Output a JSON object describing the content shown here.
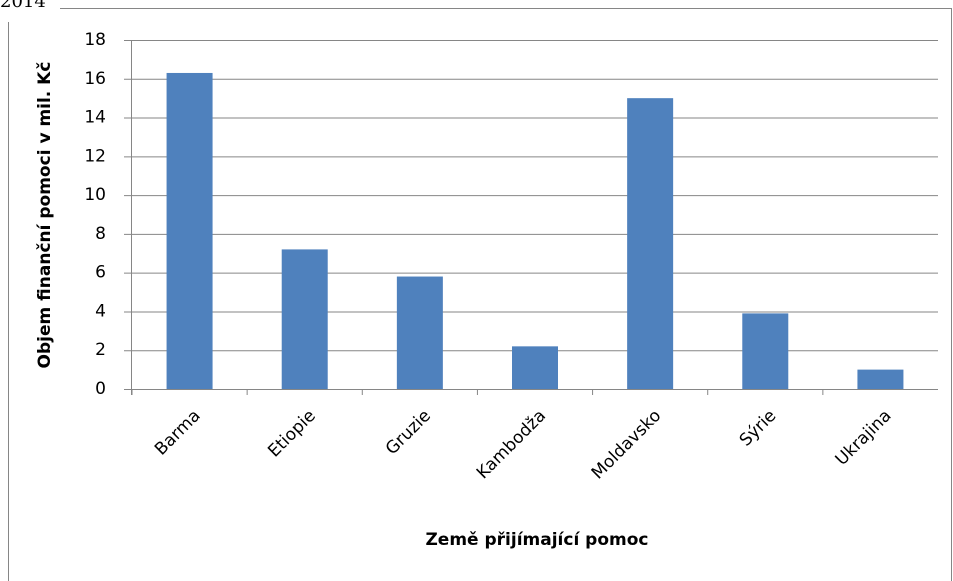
{
  "page_note": "2014",
  "chart_data": {
    "type": "bar",
    "y_axis_label": "Objem finanční pomoci v mil. Kč",
    "x_axis_label": "Země přijímající pomoc",
    "categories": [
      "Barma",
      "Etiopie",
      "Gruzie",
      "Kambodža",
      "Moldavsko",
      "Sýrie",
      "Ukrajina"
    ],
    "values": [
      16.3,
      7.2,
      5.8,
      2.2,
      15.0,
      3.9,
      1.0
    ],
    "color": "#4f81bd",
    "ylim": [
      0,
      18
    ],
    "yticks": [
      0,
      2,
      4,
      6,
      8,
      10,
      12,
      14,
      16,
      18
    ],
    "grid": true
  }
}
